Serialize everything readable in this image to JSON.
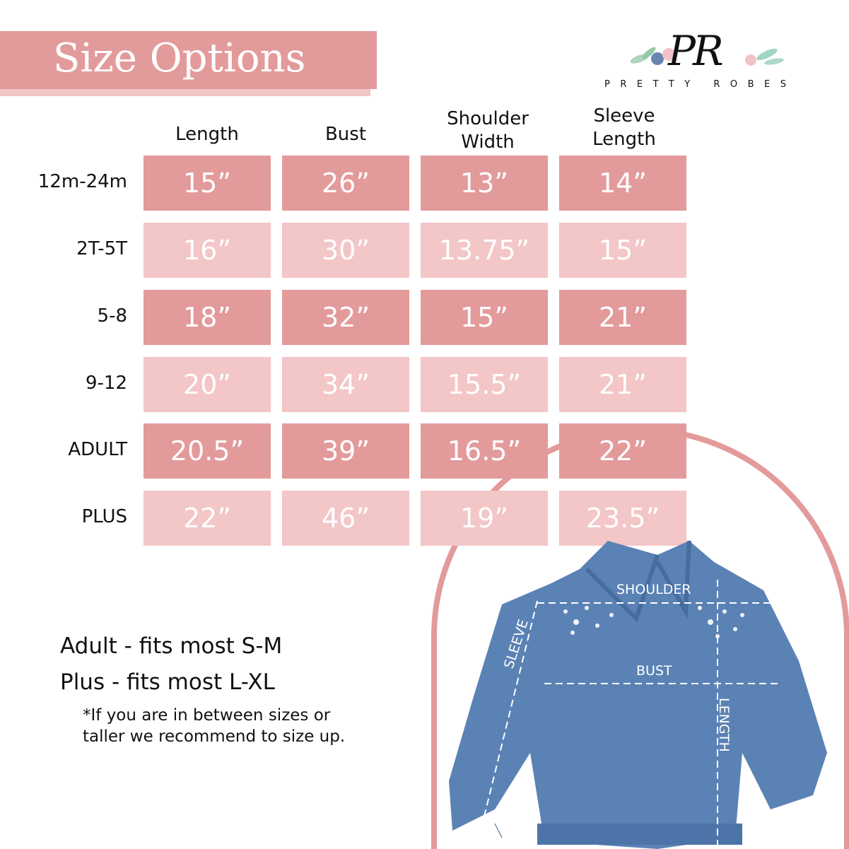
{
  "title": "Size Options",
  "logo": {
    "monogram": "PR",
    "name": "PRETTY ROBES"
  },
  "columns": [
    "Length",
    "Bust",
    "Shoulder Width",
    "Sleeve Length"
  ],
  "column_lines": [
    [
      "Length"
    ],
    [
      "Bust"
    ],
    [
      "Shoulder",
      "Width"
    ],
    [
      "Sleeve",
      "Length"
    ]
  ],
  "rows": [
    {
      "size": "12m-24m",
      "values": [
        "15”",
        "26”",
        "13”",
        "14”"
      ]
    },
    {
      "size": "2T-5T",
      "values": [
        "16”",
        "30”",
        "13.75”",
        "15”"
      ]
    },
    {
      "size": "5-8",
      "values": [
        "18”",
        "32”",
        "15”",
        "21”"
      ]
    },
    {
      "size": "9-12",
      "values": [
        "20”",
        "34”",
        "15.5”",
        "21”"
      ]
    },
    {
      "size": "ADULT",
      "values": [
        "20.5”",
        "39”",
        "16.5”",
        "22”"
      ]
    },
    {
      "size": "PLUS",
      "values": [
        "22”",
        "46”",
        "19”",
        "23.5”"
      ]
    }
  ],
  "notes": {
    "adult": "Adult - fits most S-M",
    "plus": "Plus - fits most L-XL",
    "disclaimer_line1": "*If you are in between sizes or",
    "disclaimer_line2": "taller we recommend to size up."
  },
  "jacket_labels": {
    "shoulder": "SHOULDER",
    "bust": "BUST",
    "sleeve": "SLEEVE",
    "length": "LENGTH"
  },
  "colors": {
    "dark_cell": "#e39a9b",
    "light_cell": "#f3c6c7",
    "denim": "#5b82b5"
  }
}
